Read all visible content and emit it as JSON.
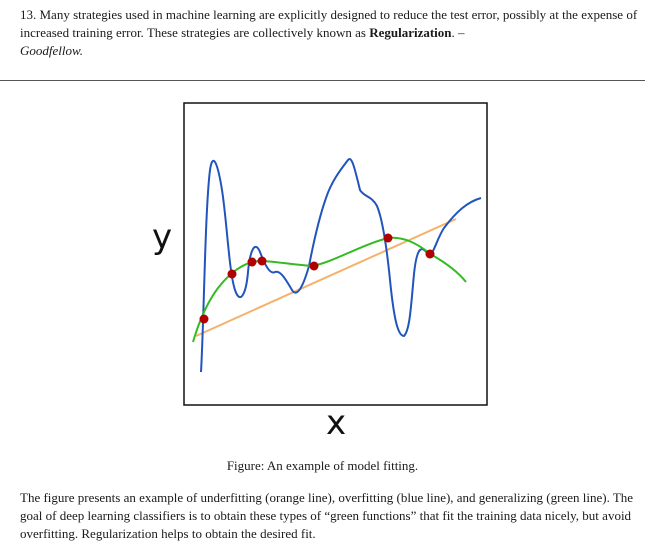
{
  "quote": {
    "intro": "13. Many strategies used in machine learning are explicitly designed to reduce the test error, possibly at the expense of increased training error. These strategies are collectively known as ",
    "bold": "Regularization",
    "tail": ". –",
    "author": "Goodfellow."
  },
  "figure": {
    "y_label": "y",
    "x_label": "x",
    "caption": "Figure: An example of model fitting.",
    "colors": {
      "underfit": "#f5b26b",
      "overfit": "#2255bb",
      "generalize": "#33bb22",
      "points": "#b00000",
      "frame": "#111111"
    }
  },
  "description": "The figure presents an example of underfitting (orange line), overfitting (blue line), and generalizing (green line). The goal of deep learning classifiers is to obtain these types of “green functions” that fit the training data nicely, but avoid overfitting. Regularization helps to obtain the desired fit."
}
